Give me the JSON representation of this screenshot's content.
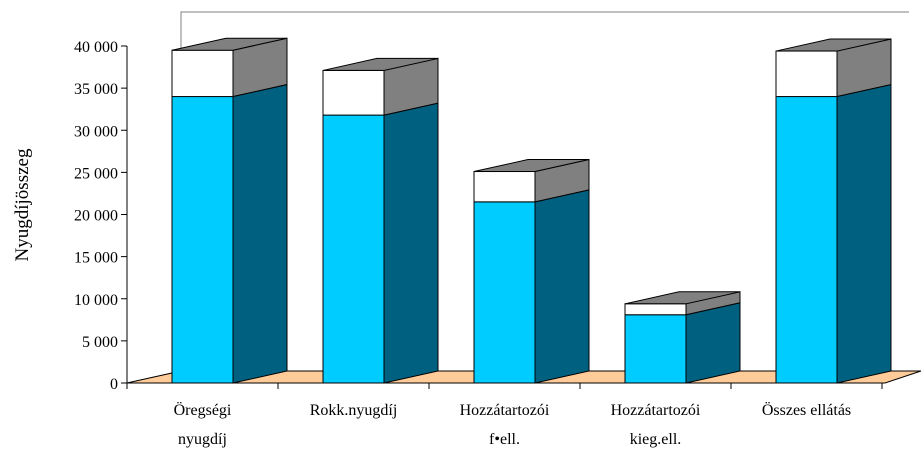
{
  "chart_data": {
    "type": "bar",
    "stacked": true,
    "three_d": true,
    "title": "",
    "xlabel": "",
    "ylabel": "Nyugdíjösszeg",
    "ylim": [
      0,
      40000
    ],
    "yticks": [
      0,
      5000,
      10000,
      15000,
      20000,
      25000,
      30000,
      35000,
      40000
    ],
    "ytick_labels": [
      "0",
      "5 000",
      "10 000",
      "15 000",
      "20 000",
      "25 000",
      "30 000",
      "35 000",
      "40 000"
    ],
    "categories": [
      [
        "Öregségi",
        "nyugdíj"
      ],
      [
        "Rokk.nyugdíj"
      ],
      [
        "Hozzátartozói",
        "f•ell."
      ],
      [
        "Hozzátartozói",
        "kieg.ell."
      ],
      [
        "Összes ellátás"
      ]
    ],
    "series": [
      {
        "values": [
          34000,
          31800,
          21500,
          8100,
          34000
        ],
        "color": "#00ccff",
        "side_color": "#006080"
      },
      {
        "values": [
          5500,
          5300,
          3600,
          1300,
          5400
        ],
        "color": "#ffffff",
        "side_color": "#808080"
      }
    ],
    "floor_color": "#ffcc99",
    "legend": "none",
    "grid": false
  }
}
